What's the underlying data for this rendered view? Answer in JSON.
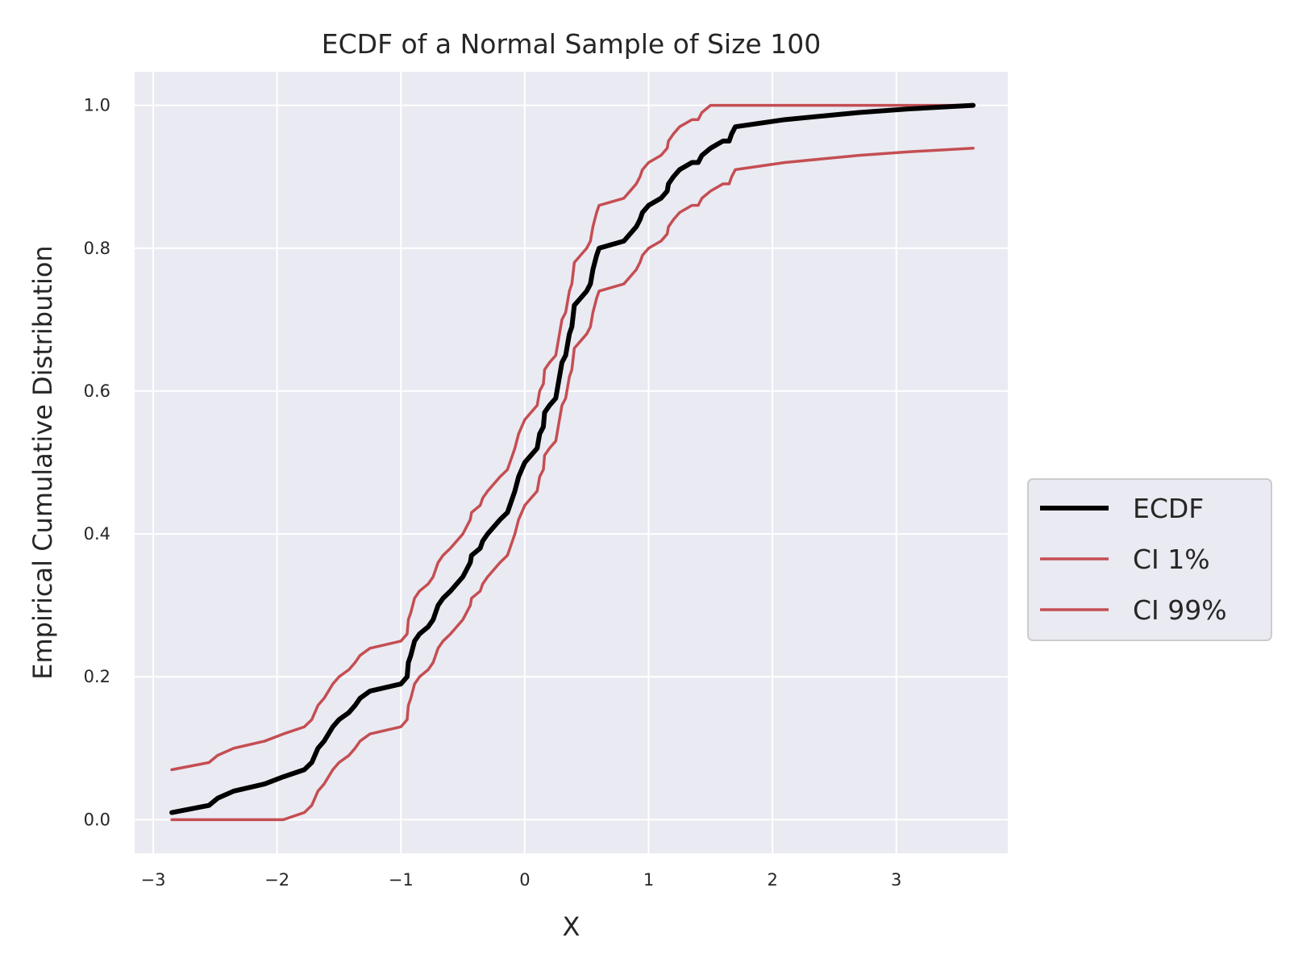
{
  "chart_data": {
    "type": "line",
    "title": "ECDF of a Normal Sample of Size 100",
    "xlabel": "X",
    "ylabel": "Empirical Cumulative Distribution",
    "xlim": [
      -3.15,
      3.9
    ],
    "ylim": [
      -0.047,
      1.047
    ],
    "xticks": [
      -3,
      -2,
      -1,
      0,
      1,
      2,
      3
    ],
    "xtick_labels": [
      "−3",
      "−2",
      "−1",
      "0",
      "1",
      "2",
      "3"
    ],
    "yticks": [
      0.0,
      0.2,
      0.4,
      0.6,
      0.8,
      1.0
    ],
    "ytick_labels": [
      "0.0",
      "0.2",
      "0.4",
      "0.6",
      "0.8",
      "1.0"
    ],
    "grid": true,
    "legend_position": "center-right outside",
    "colors": {
      "ECDF": "#000000",
      "CI": "#c44e52",
      "background": "#eaeaf2",
      "grid": "#ffffff"
    },
    "series": [
      {
        "name": "ECDF",
        "color": "#000000",
        "x": [
          -2.85,
          -2.55,
          -2.48,
          -2.35,
          -2.1,
          -1.95,
          -1.78,
          -1.72,
          -1.67,
          -1.62,
          -1.55,
          -1.5,
          -1.42,
          -1.37,
          -1.33,
          -1.25,
          -1.0,
          -0.95,
          -0.94,
          -0.92,
          -0.89,
          -0.85,
          -0.78,
          -0.74,
          -0.7,
          -0.66,
          -0.6,
          -0.55,
          -0.5,
          -0.44,
          -0.43,
          -0.36,
          -0.34,
          -0.3,
          -0.2,
          -0.14,
          -0.1,
          -0.08,
          -0.05,
          0.0,
          0.05,
          0.1,
          0.12,
          0.15,
          0.16,
          0.2,
          0.25,
          0.27,
          0.28,
          0.3,
          0.33,
          0.35,
          0.36,
          0.38,
          0.4,
          0.45,
          0.5,
          0.53,
          0.55,
          0.58,
          0.6,
          0.8,
          0.85,
          0.9,
          0.93,
          0.95,
          1.0,
          1.1,
          1.15,
          1.16,
          1.2,
          1.25,
          1.35,
          1.4,
          1.43,
          1.5,
          1.6,
          1.65,
          1.67,
          1.7,
          2.1,
          2.7,
          3.1,
          3.62
        ],
        "y": [
          0.01,
          0.02,
          0.03,
          0.04,
          0.05,
          0.06,
          0.07,
          0.08,
          0.1,
          0.11,
          0.13,
          0.14,
          0.15,
          0.16,
          0.17,
          0.18,
          0.19,
          0.2,
          0.22,
          0.23,
          0.25,
          0.26,
          0.27,
          0.28,
          0.3,
          0.31,
          0.32,
          0.33,
          0.34,
          0.36,
          0.37,
          0.38,
          0.39,
          0.4,
          0.42,
          0.43,
          0.45,
          0.46,
          0.48,
          0.5,
          0.51,
          0.52,
          0.54,
          0.55,
          0.57,
          0.58,
          0.59,
          0.61,
          0.62,
          0.64,
          0.65,
          0.67,
          0.68,
          0.69,
          0.72,
          0.73,
          0.74,
          0.75,
          0.77,
          0.79,
          0.8,
          0.81,
          0.82,
          0.83,
          0.84,
          0.85,
          0.86,
          0.87,
          0.88,
          0.89,
          0.9,
          0.91,
          0.92,
          0.92,
          0.93,
          0.94,
          0.95,
          0.95,
          0.96,
          0.97,
          0.98,
          0.99,
          0.995,
          1.0
        ]
      },
      {
        "name": "CI 1%",
        "color": "#c44e52",
        "x": [
          -2.85,
          -1.95,
          -1.78,
          -1.72,
          -1.67,
          -1.62,
          -1.55,
          -1.5,
          -1.42,
          -1.37,
          -1.33,
          -1.25,
          -1.0,
          -0.95,
          -0.94,
          -0.92,
          -0.89,
          -0.85,
          -0.78,
          -0.74,
          -0.7,
          -0.66,
          -0.6,
          -0.55,
          -0.5,
          -0.44,
          -0.43,
          -0.36,
          -0.34,
          -0.3,
          -0.2,
          -0.14,
          -0.1,
          -0.08,
          -0.05,
          0.0,
          0.05,
          0.1,
          0.12,
          0.15,
          0.16,
          0.2,
          0.25,
          0.27,
          0.28,
          0.3,
          0.33,
          0.35,
          0.36,
          0.38,
          0.4,
          0.45,
          0.5,
          0.53,
          0.55,
          0.58,
          0.6,
          0.8,
          0.85,
          0.9,
          0.93,
          0.95,
          1.0,
          1.1,
          1.15,
          1.16,
          1.2,
          1.25,
          1.35,
          1.4,
          1.43,
          1.5,
          1.6,
          1.65,
          1.67,
          1.7,
          2.1,
          2.7,
          3.1,
          3.62
        ],
        "y": [
          0.0,
          0.0,
          0.01,
          0.02,
          0.04,
          0.05,
          0.07,
          0.08,
          0.09,
          0.1,
          0.11,
          0.12,
          0.13,
          0.14,
          0.16,
          0.17,
          0.19,
          0.2,
          0.21,
          0.22,
          0.24,
          0.25,
          0.26,
          0.27,
          0.28,
          0.3,
          0.31,
          0.32,
          0.33,
          0.34,
          0.36,
          0.37,
          0.39,
          0.4,
          0.42,
          0.44,
          0.45,
          0.46,
          0.48,
          0.49,
          0.51,
          0.52,
          0.53,
          0.55,
          0.56,
          0.58,
          0.59,
          0.61,
          0.62,
          0.63,
          0.66,
          0.67,
          0.68,
          0.69,
          0.71,
          0.73,
          0.74,
          0.75,
          0.76,
          0.77,
          0.78,
          0.79,
          0.8,
          0.81,
          0.82,
          0.83,
          0.84,
          0.85,
          0.86,
          0.86,
          0.87,
          0.88,
          0.89,
          0.89,
          0.9,
          0.91,
          0.92,
          0.93,
          0.935,
          0.94
        ]
      },
      {
        "name": "CI 99%",
        "color": "#c44e52",
        "x": [
          -2.85,
          -2.55,
          -2.48,
          -2.35,
          -2.1,
          -1.95,
          -1.78,
          -1.72,
          -1.67,
          -1.62,
          -1.55,
          -1.5,
          -1.42,
          -1.37,
          -1.33,
          -1.25,
          -1.0,
          -0.95,
          -0.94,
          -0.92,
          -0.89,
          -0.85,
          -0.78,
          -0.74,
          -0.7,
          -0.66,
          -0.6,
          -0.55,
          -0.5,
          -0.44,
          -0.43,
          -0.36,
          -0.34,
          -0.3,
          -0.2,
          -0.14,
          -0.1,
          -0.08,
          -0.05,
          0.0,
          0.05,
          0.1,
          0.12,
          0.15,
          0.16,
          0.2,
          0.25,
          0.27,
          0.28,
          0.3,
          0.33,
          0.35,
          0.36,
          0.38,
          0.4,
          0.45,
          0.5,
          0.53,
          0.55,
          0.58,
          0.6,
          0.8,
          0.85,
          0.9,
          0.93,
          0.95,
          1.0,
          1.1,
          1.15,
          1.16,
          1.2,
          1.25,
          1.35,
          1.4,
          1.43,
          1.5,
          1.55,
          3.62
        ],
        "y": [
          0.07,
          0.08,
          0.09,
          0.1,
          0.11,
          0.12,
          0.13,
          0.14,
          0.16,
          0.17,
          0.19,
          0.2,
          0.21,
          0.22,
          0.23,
          0.24,
          0.25,
          0.26,
          0.28,
          0.29,
          0.31,
          0.32,
          0.33,
          0.34,
          0.36,
          0.37,
          0.38,
          0.39,
          0.4,
          0.42,
          0.43,
          0.44,
          0.45,
          0.46,
          0.48,
          0.49,
          0.51,
          0.52,
          0.54,
          0.56,
          0.57,
          0.58,
          0.6,
          0.61,
          0.63,
          0.64,
          0.65,
          0.67,
          0.68,
          0.7,
          0.71,
          0.73,
          0.74,
          0.75,
          0.78,
          0.79,
          0.8,
          0.81,
          0.83,
          0.85,
          0.86,
          0.87,
          0.88,
          0.89,
          0.9,
          0.91,
          0.92,
          0.93,
          0.94,
          0.95,
          0.96,
          0.97,
          0.98,
          0.98,
          0.99,
          1.0,
          1.0,
          1.0
        ]
      }
    ]
  }
}
